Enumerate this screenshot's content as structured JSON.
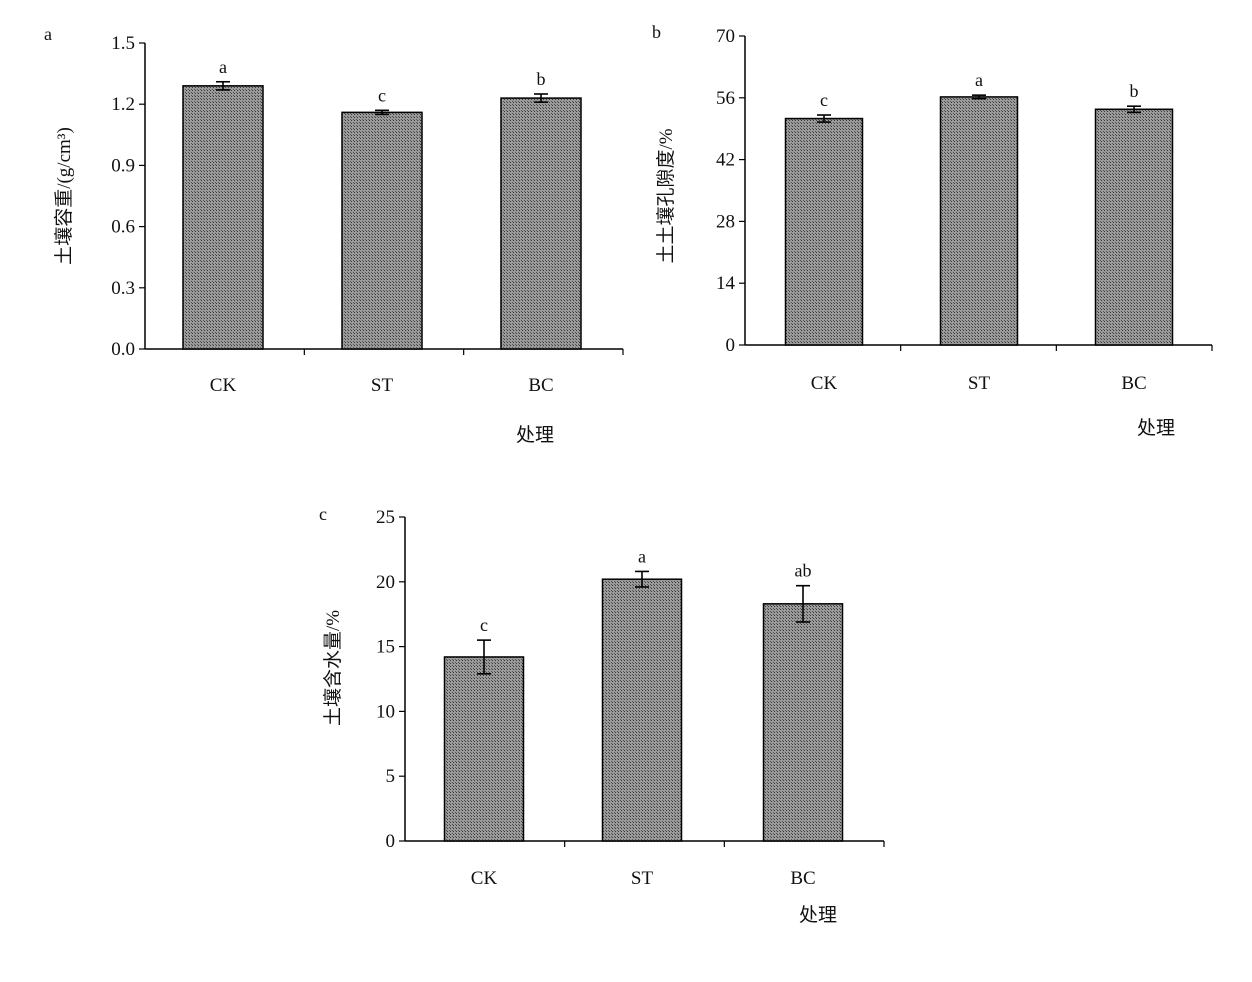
{
  "colors": {
    "bar_fill": "#8a8a8a",
    "bar_stroke": "#000000",
    "axis": "#000000"
  },
  "chart_data": [
    {
      "panel": "a",
      "type": "bar",
      "categories": [
        "CK",
        "ST",
        "BC"
      ],
      "values": [
        1.29,
        1.16,
        1.23
      ],
      "errors": [
        0.02,
        0.01,
        0.02
      ],
      "significance": [
        "a",
        "c",
        "b"
      ],
      "title": "",
      "xlabel": "处理",
      "ylabel": "土壤容重/(g/cm³)",
      "ylim": [
        0,
        1.5
      ],
      "yticks": [
        "0.0",
        "0.3",
        "0.6",
        "0.9",
        "1.2",
        "1.5"
      ],
      "grid": false,
      "legend": "none"
    },
    {
      "panel": "b",
      "type": "bar",
      "categories": [
        "CK",
        "ST",
        "BC"
      ],
      "values": [
        51.3,
        56.2,
        53.4
      ],
      "errors": [
        0.8,
        0.4,
        0.7
      ],
      "significance": [
        "c",
        "a",
        "b"
      ],
      "title": "",
      "xlabel": "处理",
      "ylabel": "土土壤孔隙度/%",
      "ylim": [
        0,
        70
      ],
      "yticks": [
        "0",
        "14",
        "28",
        "42",
        "56",
        "70"
      ],
      "grid": false,
      "legend": "none"
    },
    {
      "panel": "c",
      "type": "bar",
      "categories": [
        "CK",
        "ST",
        "BC"
      ],
      "values": [
        14.2,
        20.2,
        18.3
      ],
      "errors": [
        1.3,
        0.6,
        1.4
      ],
      "significance": [
        "c",
        "a",
        "ab"
      ],
      "title": "",
      "xlabel": "处理",
      "ylabel": "土壤含水量/%",
      "ylim": [
        0,
        25
      ],
      "yticks": [
        "0",
        "5",
        "10",
        "15",
        "20",
        "25"
      ],
      "grid": false,
      "legend": "none"
    }
  ]
}
